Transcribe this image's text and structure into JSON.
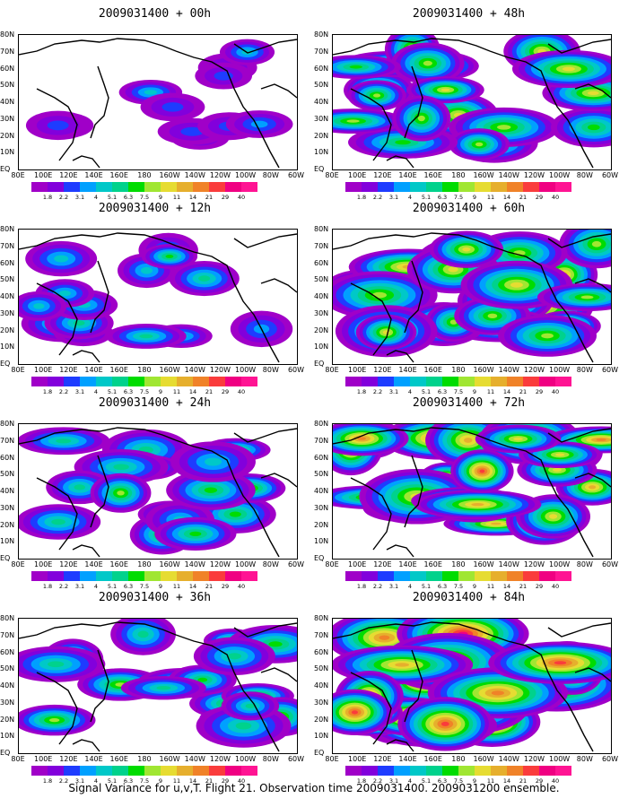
{
  "panels": [
    {
      "title": "2009031400 + 00h",
      "intensity": 0.15
    },
    {
      "title": "2009031400 + 48h",
      "intensity": 0.55
    },
    {
      "title": "2009031400 + 12h",
      "intensity": 0.3
    },
    {
      "title": "2009031400 + 60h",
      "intensity": 0.65
    },
    {
      "title": "2009031400 + 24h",
      "intensity": 0.4
    },
    {
      "title": "2009031400 + 72h",
      "intensity": 0.75
    },
    {
      "title": "2009031400 + 36h",
      "intensity": 0.48
    },
    {
      "title": "2009031400 + 84h",
      "intensity": 0.85
    }
  ],
  "lat_labels": [
    "80N",
    "70N",
    "60N",
    "50N",
    "40N",
    "30N",
    "20N",
    "10N",
    "EQ"
  ],
  "lon_labels": [
    "80E",
    "100E",
    "120E",
    "140E",
    "160E",
    "180",
    "160W",
    "140W",
    "120W",
    "100W",
    "80W",
    "60W"
  ],
  "colorbar": {
    "labels": [
      "1.8",
      "2.2",
      "3.1",
      "4",
      "5.1",
      "6.3",
      "7.5",
      "9",
      "11",
      "14",
      "21",
      "29",
      "40"
    ],
    "colors": [
      "#a000c8",
      "#8200dc",
      "#1e3cff",
      "#00a0ff",
      "#00c8c8",
      "#00d28c",
      "#00dc00",
      "#a0e632",
      "#e6dc32",
      "#e6af2d",
      "#f08228",
      "#fa3c3c",
      "#f00082",
      "#ff1493"
    ]
  },
  "footer": "Signal Variance for u,v,T. Flight 21. Observation time 2009031400. 2009031200 ensemble."
}
